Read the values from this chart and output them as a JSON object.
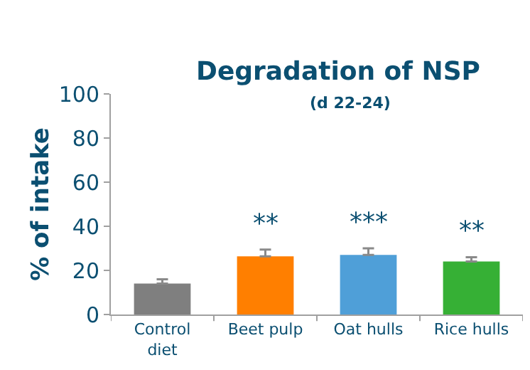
{
  "chart_data": {
    "type": "bar",
    "title": "Degradation of NSP",
    "subtitle": "(d 22-24)",
    "ylabel": "% of intake",
    "categories": [
      "Control\ndiet",
      "Beet pulp",
      "Oat hulls",
      "Rice hulls"
    ],
    "values": [
      14,
      26.4,
      27,
      24
    ],
    "colors": [
      "#7f7f7f",
      "#ff7f00",
      "#4f9fd8",
      "#36b035"
    ],
    "errors": [
      [
        14,
        16
      ],
      [
        26.4,
        29.4
      ],
      [
        27,
        30
      ],
      [
        24,
        26
      ]
    ],
    "annotations": [
      "**",
      "***",
      "**"
    ],
    "ylim": [
      0,
      100
    ],
    "yticks": [
      0,
      20,
      40,
      60,
      80,
      100
    ]
  }
}
